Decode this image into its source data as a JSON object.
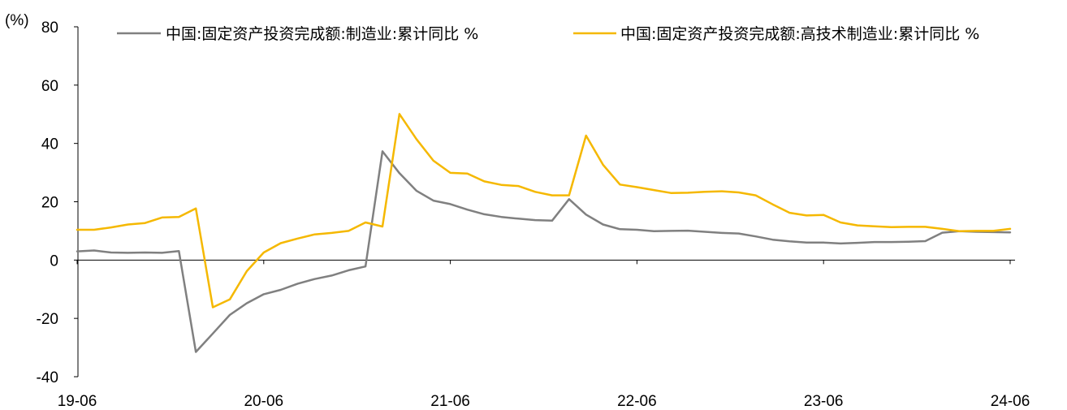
{
  "chart_data": {
    "type": "line",
    "unit_label": "(%)",
    "ylim": [
      -40,
      80
    ],
    "yticks": [
      -40,
      -20,
      0,
      20,
      40,
      60,
      80
    ],
    "xtick_labels": [
      "19-06",
      "20-06",
      "21-06",
      "22-06",
      "23-06",
      "24-06"
    ],
    "x": [
      "19-06",
      "19-07",
      "19-08",
      "19-09",
      "19-10",
      "19-11",
      "19-12",
      "20-02",
      "20-03",
      "20-04",
      "20-05",
      "20-06",
      "20-07",
      "20-08",
      "20-09",
      "20-10",
      "20-11",
      "20-12",
      "21-02",
      "21-03",
      "21-04",
      "21-05",
      "21-06",
      "21-07",
      "21-08",
      "21-09",
      "21-10",
      "21-11",
      "21-12",
      "22-02",
      "22-03",
      "22-04",
      "22-05",
      "22-06",
      "22-07",
      "22-08",
      "22-09",
      "22-10",
      "22-11",
      "22-12",
      "23-02",
      "23-03",
      "23-04",
      "23-05",
      "23-06",
      "23-07",
      "23-08",
      "23-09",
      "23-10",
      "23-11",
      "23-12",
      "24-02",
      "24-03",
      "24-04",
      "24-05",
      "24-06"
    ],
    "series": [
      {
        "name": "中国:固定资产投资完成额:制造业:累计同比 %",
        "color": "#808080",
        "values": [
          3.0,
          3.3,
          2.6,
          2.5,
          2.6,
          2.5,
          3.1,
          -31.5,
          -25.2,
          -18.8,
          -14.8,
          -11.7,
          -10.2,
          -8.1,
          -6.5,
          -5.3,
          -3.5,
          -2.2,
          37.3,
          29.8,
          23.8,
          20.4,
          19.2,
          17.3,
          15.7,
          14.8,
          14.2,
          13.7,
          13.5,
          20.9,
          15.6,
          12.2,
          10.6,
          10.4,
          9.9,
          10.0,
          10.1,
          9.7,
          9.3,
          9.1,
          8.1,
          7.0,
          6.4,
          6.0,
          6.0,
          5.7,
          5.9,
          6.2,
          6.2,
          6.3,
          6.5,
          9.4,
          9.9,
          9.7,
          9.6,
          9.5
        ]
      },
      {
        "name": "中国:固定资产投资完成额:高技术制造业:累计同比 %",
        "color": "#F5B800",
        "values": [
          10.4,
          10.4,
          11.2,
          12.2,
          12.7,
          14.6,
          14.8,
          17.7,
          -16.2,
          -13.5,
          -3.8,
          2.6,
          5.8,
          7.4,
          8.8,
          9.3,
          10.0,
          12.9,
          11.5,
          50.1,
          41.5,
          34.1,
          29.9,
          29.7,
          27.0,
          25.8,
          25.4,
          23.4,
          22.2,
          22.2,
          42.7,
          32.7,
          25.9,
          25.0,
          24.0,
          23.0,
          23.1,
          23.4,
          23.6,
          23.2,
          22.2,
          19.1,
          16.2,
          15.3,
          15.5,
          12.9,
          11.9,
          11.6,
          11.3,
          11.4,
          11.4,
          10.7,
          9.9,
          10.0,
          10.0,
          10.7
        ]
      }
    ],
    "legend_position": "top",
    "grid": false,
    "zero_axis": true
  }
}
